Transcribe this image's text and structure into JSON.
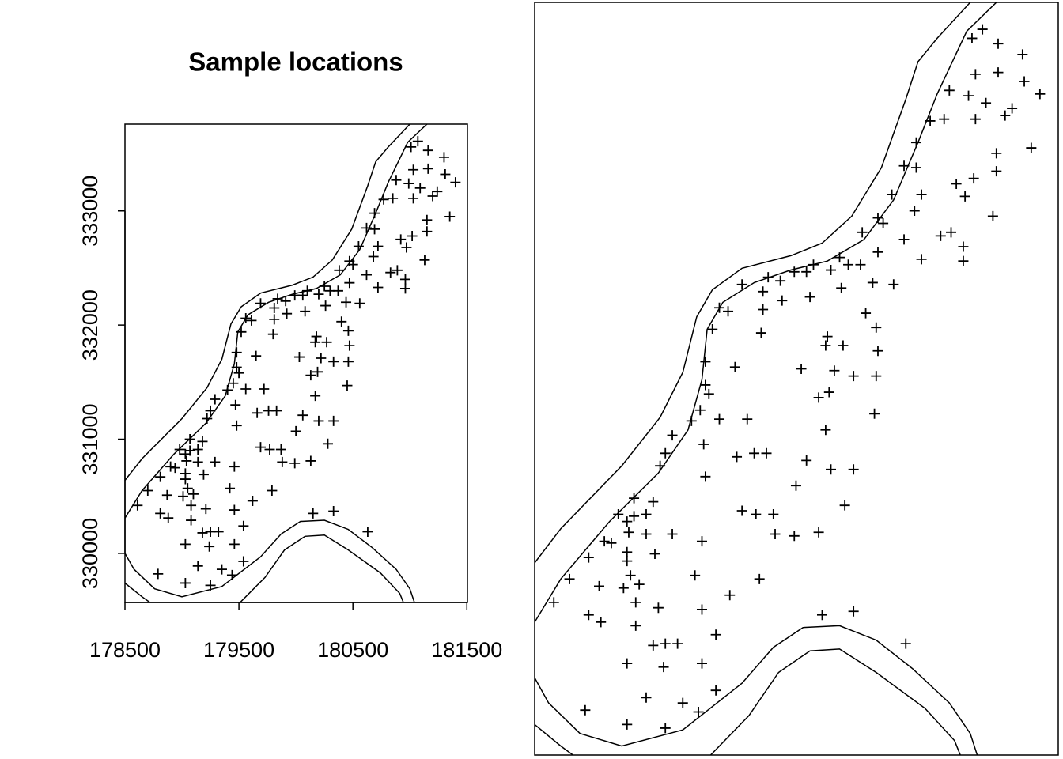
{
  "chart_data": {
    "type": "scatter",
    "title": "Sample locations",
    "marker": "+",
    "color": "#000000",
    "xlim": [
      178500,
      181505
    ],
    "ylim": [
      329570,
      333760
    ],
    "xticks": [
      178500,
      179500,
      180500,
      181500
    ],
    "yticks": [
      330000,
      331000,
      332000,
      333000
    ],
    "views": [
      {
        "axes": true
      },
      {
        "axes": false
      }
    ],
    "x": [
      181070,
      181010,
      181160,
      181300,
      181030,
      181160,
      181310,
      181400,
      180880,
      180990,
      181090,
      181240,
      180770,
      180850,
      181030,
      181200,
      180690,
      181150,
      181350,
      180620,
      180690,
      181150,
      180920,
      181020,
      180720,
      180550,
      180970,
      181130,
      180680,
      180470,
      180380,
      180500,
      180830,
      180620,
      180890,
      180960,
      180960,
      180720,
      180470,
      180250,
      180300,
      180370,
      180260,
      180440,
      180560,
      180100,
      180200,
      180060,
      179990,
      179840,
      179910,
      179810,
      179690,
      179560,
      179610,
      179810,
      179920,
      180080,
      180400,
      180460,
      179800,
      179520,
      179480,
      179650,
      180180,
      180170,
      180270,
      180470,
      180330,
      180460,
      180030,
      180130,
      180190,
      180220,
      179480,
      179500,
      179450,
      179400,
      179560,
      179720,
      180450,
      180170,
      179290,
      179250,
      179470,
      179220,
      179480,
      179660,
      179760,
      179830,
      180060,
      180200,
      180330,
      180000,
      180280,
      179690,
      179770,
      179870,
      179180,
      179070,
      178980,
      179030,
      179140,
      179070,
      179040,
      178900,
      178940,
      179140,
      179290,
      179460,
      179880,
      179990,
      180130,
      179190,
      179030,
      178810,
      178700,
      178870,
      179030,
      179050,
      179100,
      179010,
      179420,
      179620,
      179790,
      179080,
      178610,
      178810,
      178880,
      179210,
      179460,
      179080,
      179540,
      179180,
      179250,
      179320,
      179030,
      179240,
      179460,
      179540,
      179140,
      179350,
      179440,
      178790,
      179030,
      179250,
      180150,
      180330,
      180630
    ],
    "y": [
      333610,
      333560,
      333530,
      333470,
      333360,
      333370,
      333320,
      333250,
      333270,
      333240,
      333200,
      333170,
      333100,
      333110,
      333110,
      333130,
      332980,
      332920,
      332950,
      332850,
      332840,
      332820,
      332750,
      332780,
      332690,
      332690,
      332680,
      332570,
      332600,
      332560,
      332480,
      332530,
      332460,
      332440,
      332480,
      332400,
      332320,
      332330,
      332370,
      332340,
      332300,
      332300,
      332170,
      332200,
      332190,
      332300,
      332270,
      332260,
      332260,
      332230,
      332210,
      332150,
      332190,
      332060,
      332040,
      332050,
      332100,
      332120,
      332030,
      331950,
      331920,
      331940,
      331760,
      331730,
      331900,
      331850,
      331850,
      331820,
      331680,
      331680,
      331720,
      331560,
      331590,
      331710,
      331630,
      331580,
      331490,
      331430,
      331440,
      331440,
      331470,
      331380,
      331350,
      331250,
      331300,
      331180,
      331120,
      331230,
      331250,
      331250,
      331210,
      331160,
      331160,
      331070,
      330960,
      330930,
      330910,
      330910,
      330980,
      331000,
      330910,
      330870,
      330910,
      330900,
      330810,
      330760,
      330750,
      330800,
      330800,
      330760,
      330800,
      330790,
      330810,
      330690,
      330700,
      330670,
      330550,
      330510,
      330650,
      330570,
      330520,
      330500,
      330570,
      330460,
      330550,
      330420,
      330420,
      330350,
      330310,
      330390,
      330380,
      330290,
      330240,
      330180,
      330190,
      330190,
      330080,
      330060,
      330080,
      329930,
      329890,
      329860,
      329810,
      329820,
      329740,
      329720,
      330350,
      330370,
      330190
    ],
    "outlines": [
      {
        "x": [
          178380,
          178500,
          178650,
          179000,
          179220,
          179350,
          179430,
          179520,
          179690,
          179970,
          180150,
          180320,
          180490,
          180630,
          180700,
          180810,
          181000,
          181120
        ],
        "y": [
          330480,
          330640,
          330830,
          331180,
          331450,
          331700,
          332010,
          332160,
          332280,
          332350,
          332420,
          332570,
          332840,
          333220,
          333430,
          333560,
          333760,
          333880
        ]
      },
      {
        "x": [
          178380,
          178500,
          178650,
          178930,
          179210,
          179380,
          179460,
          179490,
          179580,
          179760,
          179970,
          180180,
          180390,
          180560,
          180700,
          180810,
          180980,
          181150,
          181260
        ],
        "y": [
          330140,
          330310,
          330550,
          330870,
          331140,
          331380,
          331660,
          331940,
          332090,
          332200,
          332270,
          332320,
          332440,
          332660,
          332980,
          333250,
          333600,
          333760,
          333840
        ]
      },
      {
        "x": [
          178380,
          178500,
          178580,
          178760,
          179000,
          179350,
          179690,
          179870,
          180040,
          180250,
          180460,
          180670,
          180880,
          181000,
          181080
        ],
        "y": [
          330140,
          330000,
          329860,
          329690,
          329620,
          329710,
          329970,
          330170,
          330280,
          330290,
          330210,
          330050,
          329860,
          329690,
          329450
        ]
      },
      {
        "x": [
          178380,
          178500,
          178650,
          178790
        ],
        "y": [
          329830,
          329740,
          329620,
          329520
        ]
      },
      {
        "x": [
          179420,
          179730,
          179900,
          180080,
          180250,
          180460,
          180740,
          180910,
          180980
        ],
        "y": [
          329480,
          329790,
          330030,
          330150,
          330160,
          330030,
          329830,
          329650,
          329480
        ]
      }
    ]
  }
}
